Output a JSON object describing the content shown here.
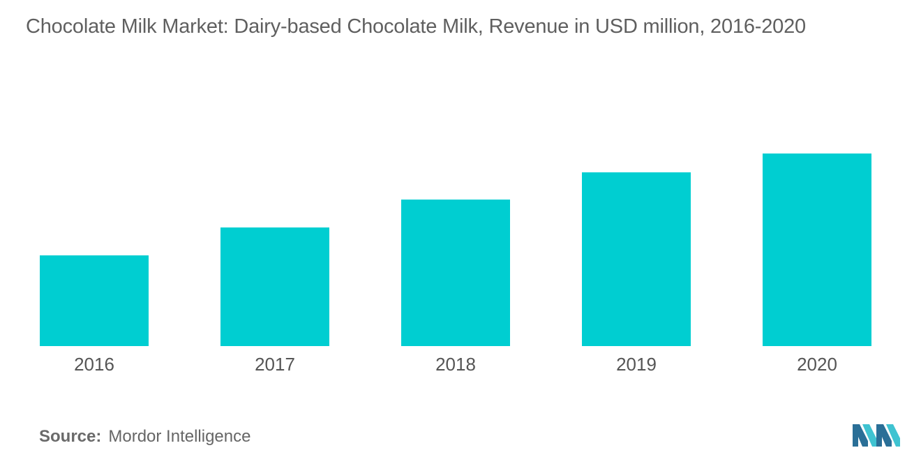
{
  "title": "Chocolate Milk Market: Dairy-based Chocolate Milk, Revenue in USD million, 2016-2020",
  "source": {
    "label": "Source:",
    "value": "Mordor Intelligence"
  },
  "logo_icon": "mordor-intelligence-logo-icon",
  "colors": {
    "bar": "#00ced1",
    "axis_text": "#555555",
    "logo_dark": "#2a6f97",
    "logo_light": "#3fc3d1"
  },
  "chart_data": {
    "type": "bar",
    "categories": [
      "2016",
      "2017",
      "2018",
      "2019",
      "2020"
    ],
    "values": [
      130,
      170,
      210,
      249,
      276
    ],
    "title": "Chocolate Milk Market: Dairy-based Chocolate Milk, Revenue in USD million, 2016-2020",
    "xlabel": "",
    "ylabel": "",
    "ylim": [
      0,
      300
    ],
    "grid": false,
    "legend": "none"
  }
}
